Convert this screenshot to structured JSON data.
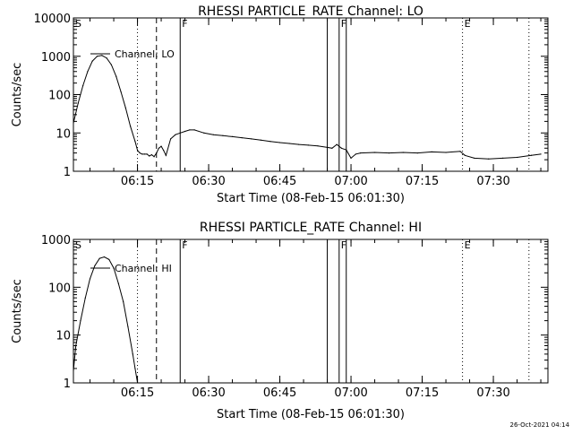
{
  "chart_data": [
    {
      "type": "line",
      "title": "RHESSI PARTICLE_RATE Channel: LO",
      "xlabel": "Start Time (08-Feb-15 06:01:30)",
      "ylabel": "Counts/sec",
      "y_scale": "log",
      "ylim": [
        1,
        10000
      ],
      "xlim": [
        "06:01:30",
        "07:41:30"
      ],
      "x_ticks": [
        "06:15",
        "06:30",
        "06:45",
        "07:00",
        "07:15",
        "07:30"
      ],
      "y_ticks": [
        "1",
        "10",
        "100",
        "1000",
        "10000"
      ],
      "legend": "top-left",
      "series": [
        {
          "name": "Channel: LO",
          "x": [
            "06:01:30",
            "06:02:30",
            "06:03:30",
            "06:04:30",
            "06:05:30",
            "06:06:30",
            "06:07:30",
            "06:08:30",
            "06:09:30",
            "06:10:30",
            "06:11:30",
            "06:12:30",
            "06:13:30",
            "06:14:30",
            "06:15:00",
            "06:15:30",
            "06:16:00",
            "06:16:30",
            "06:17:00",
            "06:17:30",
            "06:18:00",
            "06:18:30",
            "06:19:00",
            "06:19:30",
            "06:20:00",
            "06:20:30",
            "06:21:00",
            "06:22:00",
            "06:23:00",
            "06:24:00",
            "06:25:00",
            "06:26:00",
            "06:27:00",
            "06:29:00",
            "06:31:00",
            "06:33:00",
            "06:35:00",
            "06:37:00",
            "06:39:00",
            "06:41:00",
            "06:43:00",
            "06:45:00",
            "06:47:00",
            "06:49:00",
            "06:51:00",
            "06:53:00",
            "06:55:00",
            "06:56:00",
            "06:57:00",
            "06:58:00",
            "06:59:00",
            "07:00:00",
            "07:01:00",
            "07:02:00",
            "07:05:00",
            "07:08:00",
            "07:11:00",
            "07:14:00",
            "07:17:00",
            "07:20:00",
            "07:23:00",
            "07:24:00",
            "07:26:00",
            "07:29:00",
            "07:32:00",
            "07:35:00",
            "07:38:00",
            "07:40:00"
          ],
          "y": [
            18,
            60,
            170,
            400,
            750,
            1000,
            1050,
            900,
            600,
            300,
            120,
            45,
            15,
            6,
            3.5,
            3,
            2.8,
            2.8,
            2.8,
            2.5,
            2.7,
            2.4,
            3,
            4,
            4.5,
            3.5,
            2.6,
            7,
            9,
            10,
            11,
            12,
            12,
            10,
            9,
            8.5,
            8,
            7.5,
            7,
            6.5,
            6,
            5.6,
            5.3,
            5,
            4.8,
            4.6,
            4.2,
            4,
            5,
            4,
            3.6,
            2.2,
            2.8,
            3,
            3.1,
            3,
            3.1,
            3,
            3.2,
            3.1,
            3.3,
            2.6,
            2.2,
            2.1,
            2.2,
            2.3,
            2.6,
            2.8
          ]
        }
      ],
      "markers": [
        {
          "label": "S",
          "x": "06:01:30",
          "style": "solid"
        },
        {
          "x": "06:15:00",
          "style": "dotted"
        },
        {
          "x": "06:19:00",
          "style": "dashed"
        },
        {
          "label": "F",
          "x": "06:24:00",
          "style": "solid"
        },
        {
          "x": "06:55:00",
          "style": "solid"
        },
        {
          "label": "F",
          "x": "06:57:30",
          "style": "solid"
        },
        {
          "x": "06:59:00",
          "style": "solid"
        },
        {
          "label": "E",
          "x": "07:23:30",
          "style": "dotted"
        },
        {
          "x": "07:37:30",
          "style": "dotted"
        }
      ]
    },
    {
      "type": "line",
      "title": "RHESSI PARTICLE_RATE Channel: HI",
      "xlabel": "Start Time (08-Feb-15 06:01:30)",
      "ylabel": "Counts/sec",
      "y_scale": "log",
      "ylim": [
        1,
        1000
      ],
      "xlim": [
        "06:01:30",
        "07:41:30"
      ],
      "x_ticks": [
        "06:15",
        "06:30",
        "06:45",
        "07:00",
        "07:15",
        "07:30"
      ],
      "y_ticks": [
        "1",
        "10",
        "100",
        "1000"
      ],
      "legend": "top-left",
      "series": [
        {
          "name": "Channel: HI",
          "x": [
            "06:01:30",
            "06:02:00",
            "06:03:00",
            "06:04:00",
            "06:05:00",
            "06:06:00",
            "06:07:00",
            "06:08:00",
            "06:09:00",
            "06:10:00",
            "06:11:00",
            "06:12:00",
            "06:13:00",
            "06:14:00",
            "06:14:30",
            "06:15:00"
          ],
          "y": [
            1.8,
            6,
            20,
            60,
            150,
            280,
            400,
            430,
            380,
            250,
            120,
            50,
            15,
            4,
            2,
            1
          ]
        }
      ],
      "markers": [
        {
          "label": "S",
          "x": "06:01:30",
          "style": "solid"
        },
        {
          "x": "06:15:00",
          "style": "dotted"
        },
        {
          "x": "06:19:00",
          "style": "dashed"
        },
        {
          "label": "F",
          "x": "06:24:00",
          "style": "solid"
        },
        {
          "x": "06:55:00",
          "style": "solid"
        },
        {
          "label": "F",
          "x": "06:57:30",
          "style": "solid"
        },
        {
          "x": "06:59:00",
          "style": "solid"
        },
        {
          "label": "E",
          "x": "07:23:30",
          "style": "dotted"
        },
        {
          "x": "07:37:30",
          "style": "dotted"
        }
      ]
    }
  ],
  "footer": {
    "timestamp": "26-Oct-2021 04:14"
  }
}
